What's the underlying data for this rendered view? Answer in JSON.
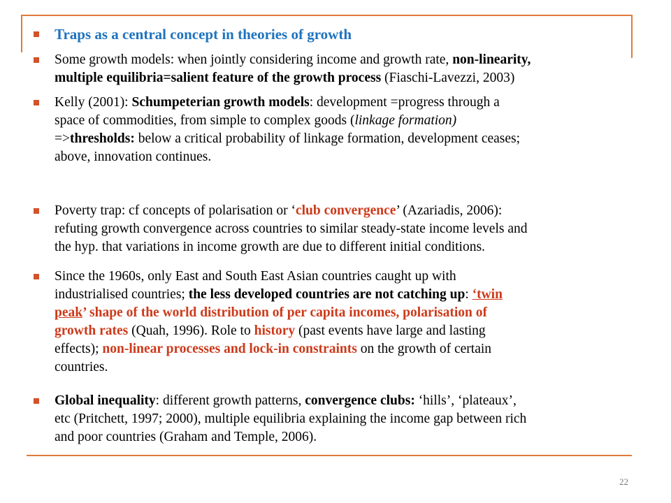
{
  "colors": {
    "accent_rule": "#e07a3c",
    "bullet": "#d2532a",
    "title_blue": "#1e73be",
    "highlight_red": "#cc3a1a"
  },
  "bullets": [
    {
      "title": "Traps as a central concept in theories of growth"
    },
    {
      "l1a": "Some growth models: when jointly considering income and growth rate, ",
      "l1b": "non-linearity,",
      "l2a": "multiple equilibria=salient feature of the growth process",
      "l2b": "  (Fiaschi-Lavezzi, 2003)"
    },
    {
      "l1a": "Kelly (2001): ",
      "l1b": "Schumpeterian growth models",
      "l1c": ": development =progress through a",
      "l2a": "space of commodities, from simple to complex goods (",
      "l2b": "linkage formation)",
      "l3a": "=>",
      "l3b": "thresholds:",
      "l3c": " below a critical probability of linkage formation, development ceases;",
      "l4a": "above, innovation continues."
    },
    {
      "l1a": "Poverty trap: cf concepts of polarisation or ‘",
      "l1b": "club convergence",
      "l1c": "’ (Azariadis, 2006):",
      "l2a": "refuting growth convergence across countries to similar steady-state income levels and",
      "l3a": "the hyp. that variations in income growth are due to different initial conditions."
    },
    {
      "l1a": "Since the 1960s, only East and South East Asian countries caught up with",
      "l2a": "industrialised countries;  ",
      "l2b": "the less developed countries are not catching up",
      "l2c": ": ",
      "l2d": "‘twin",
      "l3a": "peak",
      "l3b": "’ shape of the world distribution of per capita incomes, polarisation of",
      "l4a": "growth rates",
      "l4b": " (Quah, 1996).  Role to ",
      "l4c": "history",
      "l4d": " (past events have large and lasting",
      "l5a": "effects); ",
      "l5b": "non-linear processes and lock-in constraints",
      "l5c": " on the growth of certain",
      "l6a": "countries."
    },
    {
      "l1a": "Global inequality",
      "l1b": ": different growth patterns, ",
      "l1c": "convergence clubs:",
      "l1d": " ‘hills’, ‘plateaux’,",
      "l2a": "etc (Pritchett, 1997; 2000), multiple equilibria explaining the income gap between rich",
      "l3a": "and poor countries (Graham and Temple, 2006)."
    }
  ],
  "page_number": "22"
}
